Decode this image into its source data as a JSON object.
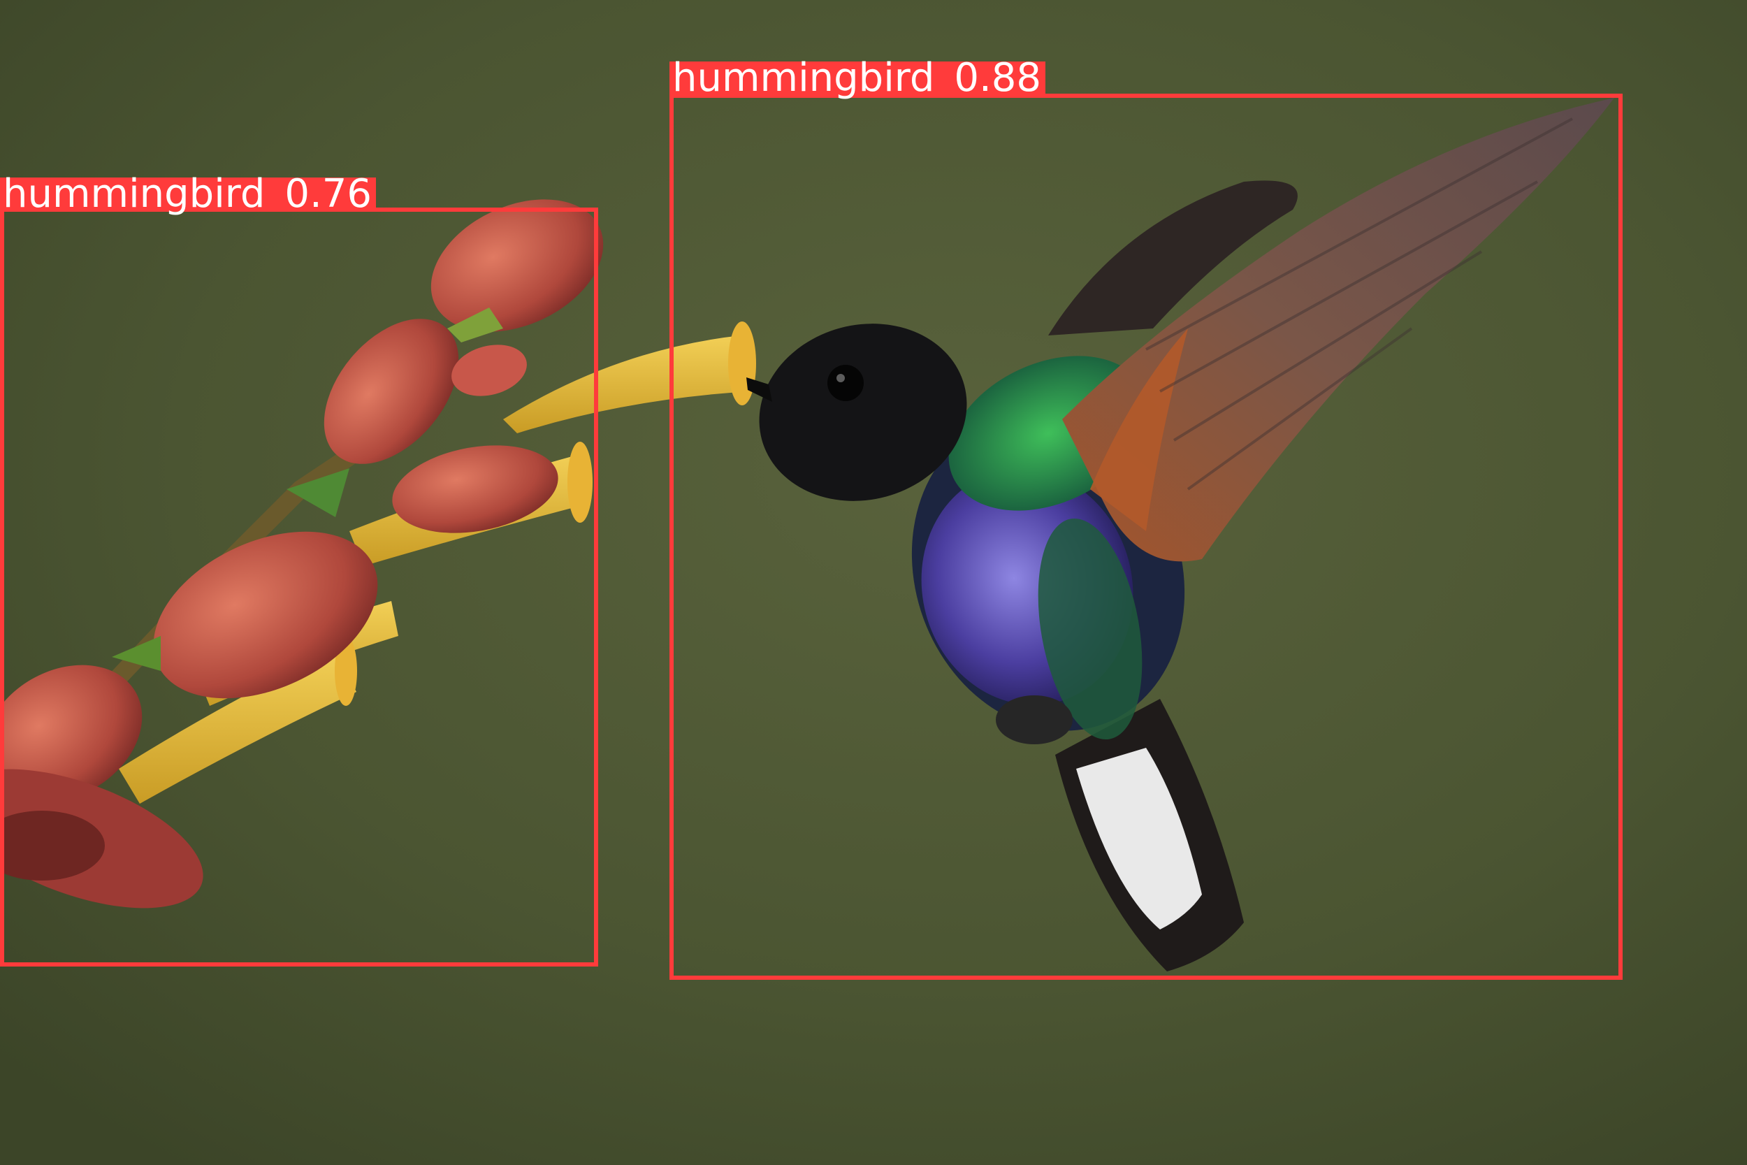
{
  "image": {
    "subject": "hummingbird-feeding-on-flower",
    "detections": [
      {
        "label": "hummingbird",
        "score": "0.88",
        "color": "#ff3b3b"
      },
      {
        "label": "hummingbird",
        "score": "0.76",
        "color": "#ff3b3b"
      }
    ]
  }
}
